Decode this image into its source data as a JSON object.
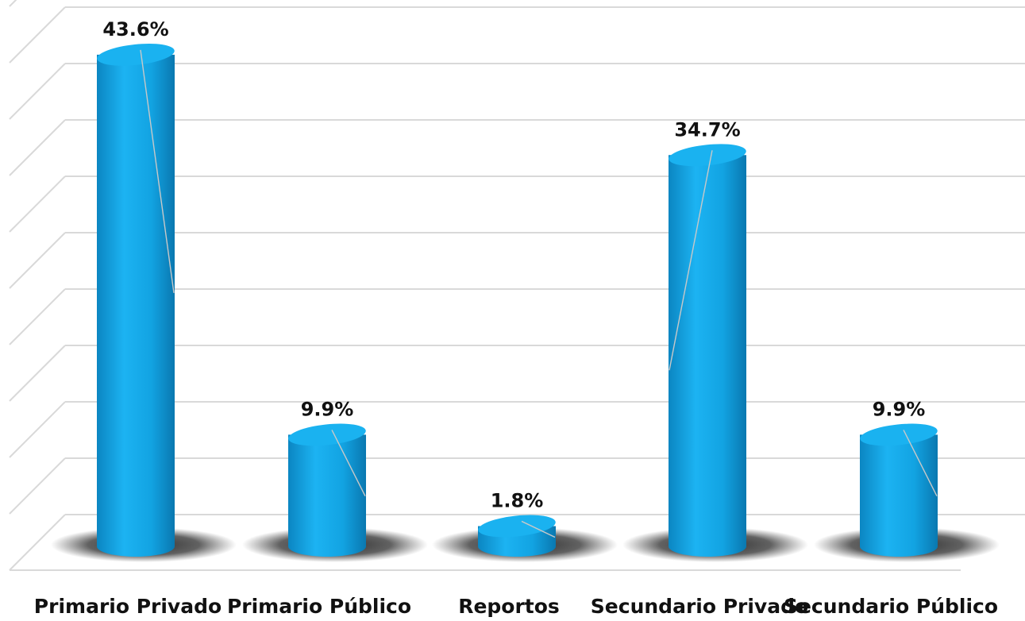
{
  "chart_data": {
    "type": "bar",
    "style": "3d-cylinder",
    "categories": [
      "Primario Privado",
      "Primario Público",
      "Reportos",
      "Secundario Privado",
      "Secundario Público"
    ],
    "values": [
      43.6,
      9.9,
      1.8,
      34.7,
      9.9
    ],
    "data_labels": [
      "43.6%",
      "9.9%",
      "1.8%",
      "34.7%",
      "9.9%"
    ],
    "unit": "%",
    "title": "",
    "xlabel": "",
    "ylabel": "",
    "ylim": [
      0,
      50
    ],
    "grid": true,
    "legend": "none",
    "colors": {
      "bar": "#12a6e6",
      "bar_dark": "#0a7fb8",
      "bar_top": "#1ab2f0",
      "grid": "#d9d9d9",
      "shadow": "#3a3a3a",
      "label": "#111111"
    }
  }
}
